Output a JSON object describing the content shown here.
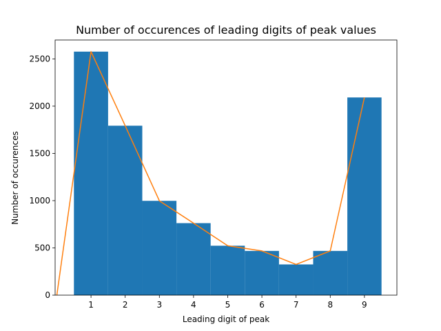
{
  "chart_data": {
    "type": "bar",
    "title": "Number of occurences of leading digits of peak values",
    "xlabel": "Leading digit of peak",
    "ylabel": "Number of occurences",
    "categories": [
      "1",
      "2",
      "3",
      "4",
      "5",
      "6",
      "7",
      "8",
      "9"
    ],
    "x": [
      1,
      2,
      3,
      4,
      5,
      6,
      7,
      8,
      9
    ],
    "xlim": [
      -0.05,
      9.95
    ],
    "ylim": [
      0,
      2700
    ],
    "x_ticks": [
      1,
      2,
      3,
      4,
      5,
      6,
      7,
      8,
      9
    ],
    "y_ticks": [
      0,
      500,
      1000,
      1500,
      2000,
      2500
    ],
    "grid": false,
    "colors": {
      "bar": "#1f77b4",
      "line": "#ff7f0e"
    },
    "series": [
      {
        "kind": "bar",
        "values": [
          2577,
          1793,
          998,
          762,
          523,
          468,
          325,
          468,
          2092
        ]
      },
      {
        "kind": "line",
        "x": [
          0,
          1,
          2,
          3,
          4,
          5,
          6,
          7,
          8,
          9
        ],
        "values": [
          0,
          2577,
          1793,
          998,
          762,
          523,
          468,
          325,
          468,
          2092
        ]
      }
    ]
  }
}
